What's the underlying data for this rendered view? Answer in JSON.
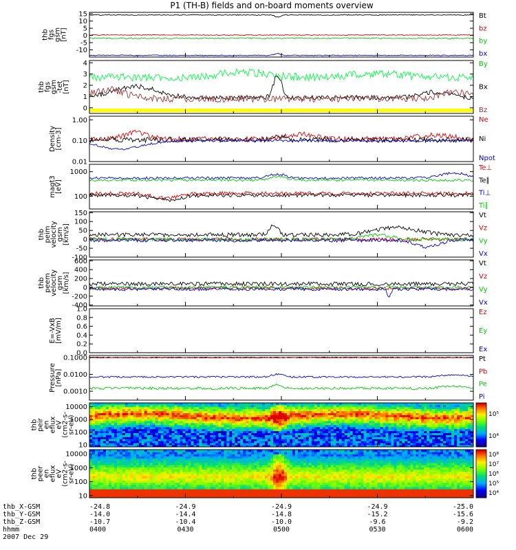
{
  "figure": {
    "title": "P1 (TH-B) fields and on-board moments overview",
    "footer": {
      "rows": [
        {
          "label": "thb_X-GSM",
          "values": [
            "-24.8",
            "-24.9",
            "-24.9",
            "-24.9",
            "-25.0"
          ]
        },
        {
          "label": "thb_Y-GSM",
          "values": [
            "-14.0",
            "-14.4",
            "-14.8",
            "-15.2",
            "-15.6"
          ]
        },
        {
          "label": "thb_Z-GSM",
          "values": [
            "-10.7",
            "-10.4",
            "-10.0",
            "-9.6",
            "-9.2"
          ]
        },
        {
          "label": "hhmm",
          "values": [
            "0400",
            "0430",
            "0500",
            "0530",
            "0600"
          ]
        }
      ],
      "date": "2007 Dec 29"
    }
  },
  "chart_data": [
    {
      "id": "p1",
      "type": "line",
      "ylabel": [
        "thb",
        "fgs",
        "gsm",
        "[nT]"
      ],
      "ylim": [
        -15,
        16
      ],
      "yticks": [
        -10,
        -5,
        0,
        5,
        10,
        15
      ],
      "yticklabels": [
        "-10",
        "-5",
        "0",
        "5",
        "10",
        "15"
      ],
      "series": [
        {
          "name": "Bt",
          "color": "#000000",
          "base": 14.2,
          "noise": 0.3,
          "events": [
            [
              0.49,
              -1.5,
              0.01
            ]
          ]
        },
        {
          "name": "bz",
          "color": "#dd0000",
          "base": 0.3,
          "noise": 0.3,
          "events": []
        },
        {
          "name": "by",
          "color": "#00cc00",
          "base": -2.0,
          "noise": 0.4,
          "events": []
        },
        {
          "name": "bx",
          "color": "#0000cc",
          "base": -13.8,
          "noise": 0.3,
          "events": [
            [
              0.49,
              1.3,
              0.01
            ]
          ]
        }
      ]
    },
    {
      "id": "p2",
      "type": "line",
      "ylabel": [
        "thb",
        "fgs",
        "gsm",
        "-tet",
        "[nT]"
      ],
      "ylim": [
        -0.5,
        4.2
      ],
      "yticks": [
        0,
        1,
        2,
        3,
        4
      ],
      "yticklabels": [
        "0",
        "1",
        "2",
        "3",
        "4"
      ],
      "bar": {
        "color": "#ffff00",
        "value": -0.35
      },
      "series": [
        {
          "name": "By",
          "color": "#00ff44",
          "base": 2.7,
          "noise": 0.35,
          "events": [
            [
              0.4,
              0.5,
              0.08
            ],
            [
              0.75,
              0.3,
              0.1
            ]
          ]
        },
        {
          "name": "Bx",
          "color": "#000000",
          "base": 0.9,
          "noise": 0.2,
          "events": [
            [
              0.12,
              1.0,
              0.08
            ],
            [
              0.49,
              2.0,
              0.015
            ],
            [
              0.9,
              0.5,
              0.05
            ]
          ]
        },
        {
          "name": "Bz",
          "color": "#993333",
          "base": 0.8,
          "noise": 0.3,
          "events": [
            [
              0.05,
              0.8,
              0.06
            ],
            [
              0.95,
              0.6,
              0.05
            ]
          ]
        }
      ]
    },
    {
      "id": "p3",
      "type": "line",
      "log": true,
      "ylabel": [
        "Density",
        "[cm-3]"
      ],
      "ylim": [
        0.01,
        1.5
      ],
      "yticks": [
        0.01,
        0.1,
        1.0
      ],
      "yticklabels": [
        "0.01",
        "0.10",
        "1.00"
      ],
      "series": [
        {
          "name": "Ne",
          "color": "#dd0000",
          "base": 0.12,
          "noise": 0.25,
          "events": [
            [
              0.12,
              0.8,
              0.04
            ],
            [
              0.55,
              0.6,
              0.05
            ],
            [
              0.9,
              0.5,
              0.06
            ]
          ]
        },
        {
          "name": "Ni",
          "color": "#000000",
          "base": 0.11,
          "noise": 0.25,
          "events": [
            [
              0.49,
              0.5,
              0.02
            ]
          ]
        },
        {
          "name": "Npot",
          "color": "#0000cc",
          "base": 0.1,
          "noise": 0.1,
          "events": [
            [
              0.08,
              -1.0,
              0.08
            ]
          ]
        }
      ]
    },
    {
      "id": "p4",
      "type": "line",
      "log": true,
      "ylabel": [
        "magt3",
        "[eV]"
      ],
      "ylim": [
        30,
        2000
      ],
      "yticks": [
        100,
        1000
      ],
      "yticklabels": [
        "100",
        "1000"
      ],
      "series": [
        {
          "name": "Te⊥",
          "color": "#dd0000",
          "base": 130,
          "noise": 0.15,
          "events": [
            [
              0.2,
              -0.5,
              0.05
            ]
          ]
        },
        {
          "name": "Te∥",
          "color": "#000000",
          "base": 110,
          "noise": 0.15,
          "events": [
            [
              0.2,
              -0.5,
              0.05
            ]
          ]
        },
        {
          "name": "Ti⊥",
          "color": "#0000cc",
          "base": 550,
          "noise": 0.1,
          "events": [
            [
              0.49,
              0.4,
              0.03
            ],
            [
              0.95,
              0.5,
              0.05
            ]
          ]
        },
        {
          "name": "Ti∥",
          "color": "#00cc00",
          "base": 450,
          "noise": 0.1,
          "events": [
            [
              0.49,
              0.4,
              0.03
            ]
          ]
        }
      ]
    },
    {
      "id": "p5",
      "type": "line",
      "ylabel": [
        "thb",
        "peim",
        "velocity",
        "gsm",
        "[km/s]"
      ],
      "ylim": [
        -100,
        155
      ],
      "yticks": [
        -100,
        -50,
        0,
        50,
        100,
        150
      ],
      "yticklabels": [
        "-100",
        "-50",
        "0",
        "50",
        "100",
        "150"
      ],
      "series": [
        {
          "name": "Vt",
          "color": "#000000",
          "base": 25,
          "noise": 12,
          "events": [
            [
              0.48,
              60,
              0.015
            ],
            [
              0.8,
              40,
              0.08
            ]
          ]
        },
        {
          "name": "Vz",
          "color": "#dd0000",
          "base": 0,
          "noise": 10,
          "events": []
        },
        {
          "name": "Vy",
          "color": "#00cc00",
          "base": 0,
          "noise": 10,
          "events": [
            [
              0.75,
              25,
              0.05
            ]
          ]
        },
        {
          "name": "Vx",
          "color": "#0000cc",
          "base": -5,
          "noise": 10,
          "events": [
            [
              0.88,
              -40,
              0.04
            ]
          ]
        }
      ]
    },
    {
      "id": "p6",
      "type": "line",
      "ylabel": [
        "thb",
        "peem",
        "velocity",
        "gsm",
        "[km/s]"
      ],
      "ylim": [
        -420,
        620
      ],
      "yticks": [
        -400,
        -200,
        0,
        200,
        400,
        600
      ],
      "yticklabels": [
        "-400",
        "-200",
        "0",
        "200",
        "400",
        "600"
      ],
      "series": [
        {
          "name": "Vt",
          "color": "#000000",
          "base": 80,
          "noise": 45,
          "events": []
        },
        {
          "name": "Vz",
          "color": "#dd0000",
          "base": -20,
          "noise": 35,
          "events": []
        },
        {
          "name": "Vy",
          "color": "#00cc00",
          "base": 0,
          "noise": 35,
          "events": []
        },
        {
          "name": "Vx",
          "color": "#0000cc",
          "base": -40,
          "noise": 35,
          "events": [
            [
              0.78,
              -200,
              0.006
            ]
          ]
        }
      ]
    },
    {
      "id": "p7",
      "type": "line",
      "ylabel": [
        "E=-VxB",
        "[mV/m]"
      ],
      "ylim": [
        0,
        1.0
      ],
      "yticks": [
        0,
        0.2,
        0.4,
        0.6,
        0.8,
        1.0
      ],
      "yticklabels": [
        "0.0",
        "0.2",
        "0.4",
        "0.6",
        "0.8",
        "1.0"
      ],
      "series": [
        {
          "name": "Ez",
          "color": "#dd0000"
        },
        {
          "name": "Ey",
          "color": "#00cc00"
        },
        {
          "name": "Ex",
          "color": "#0000cc"
        }
      ]
    },
    {
      "id": "p8",
      "type": "line",
      "log": true,
      "ylabel": [
        "Pressure",
        "[nPa]"
      ],
      "ylim": [
        0.0003,
        0.13
      ],
      "yticks": [
        0.001,
        0.01,
        0.1
      ],
      "yticklabels": [
        "0.0010",
        "0.0100",
        "0.1000"
      ],
      "series": [
        {
          "name": "Pt",
          "color": "#000000",
          "base": 0.1,
          "noise": 0.03,
          "events": []
        },
        {
          "name": "Pb",
          "color": "#dd0000",
          "base": 0.095,
          "noise": 0.03,
          "events": []
        },
        {
          "name": "Pe",
          "color": "#00cc00",
          "base": 0.0015,
          "noise": 0.15,
          "events": [
            [
              0.49,
              0.5,
              0.02
            ],
            [
              0.95,
              0.3,
              0.05
            ]
          ]
        },
        {
          "name": "Pi",
          "color": "#0000cc",
          "base": 0.007,
          "noise": 0.1,
          "events": [
            [
              0.49,
              0.4,
              0.02
            ],
            [
              0.95,
              0.3,
              0.05
            ]
          ]
        }
      ]
    },
    {
      "id": "p9",
      "type": "heatmap",
      "log": true,
      "ylabel": [
        "thb",
        "peir",
        "en",
        "eflux",
        "eV",
        "(cm2-s-",
        "sr-eV)"
      ],
      "ylim": [
        7,
        20000
      ],
      "yticks": [
        10,
        100,
        1000,
        10000
      ],
      "yticklabels": [
        "10",
        "100",
        "1000",
        "10000"
      ],
      "colorbar": {
        "ticks": [
          "10⁴",
          "10⁵"
        ]
      }
    },
    {
      "id": "p10",
      "type": "heatmap",
      "log": true,
      "ylabel": [
        "thb",
        "peer",
        "en",
        "eflux",
        "eV",
        "(cm2-s-",
        "sr-eV)"
      ],
      "ylim": [
        7,
        20000
      ],
      "yticks": [
        10,
        100,
        1000,
        10000
      ],
      "yticklabels": [
        "10",
        "100",
        "1000",
        "10000"
      ],
      "colorbar": {
        "ticks": [
          "10⁴",
          "10⁵",
          "10⁶",
          "10⁷",
          "10⁸"
        ]
      }
    }
  ]
}
